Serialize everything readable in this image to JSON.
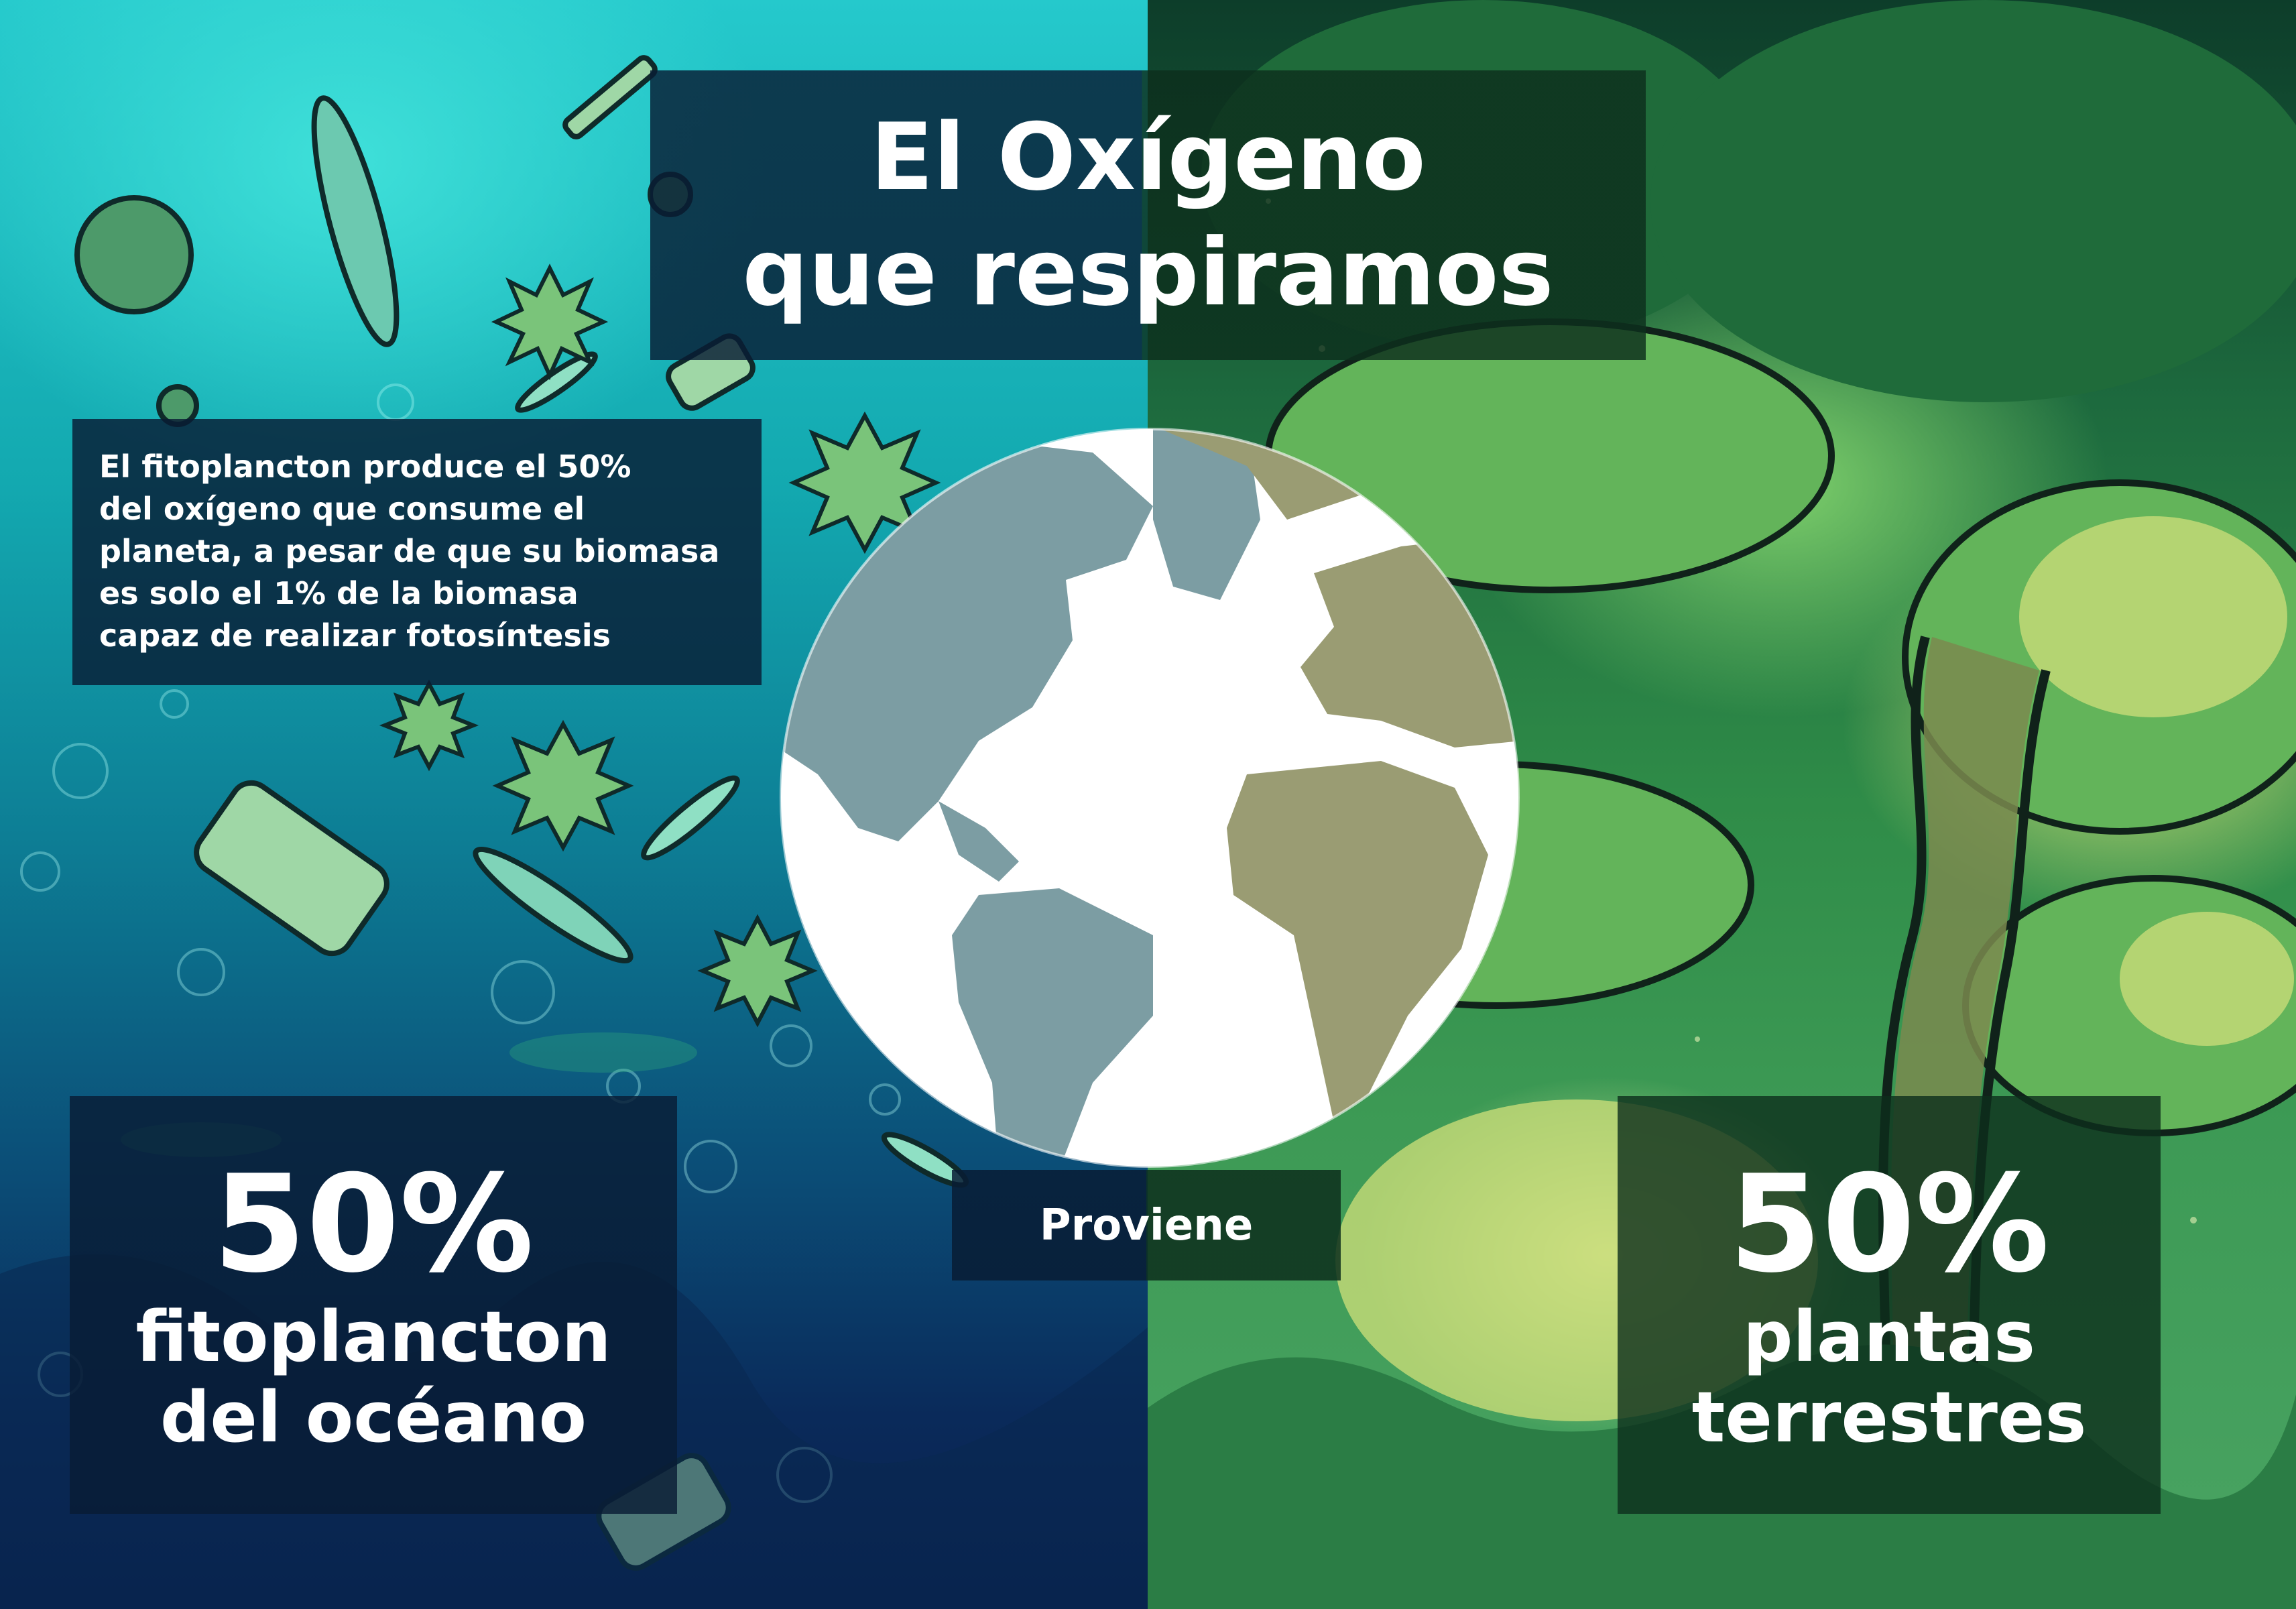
{
  "title": {
    "line1": "El Oxígeno",
    "line2": "que respiramos"
  },
  "info": {
    "lines": [
      "El fitoplancton produce el 50%",
      "del oxígeno que consume el",
      "planeta, a pesar de que su biomasa",
      "es solo el 1% de la biomasa",
      "capaz de realizar fotosíntesis"
    ]
  },
  "left_stat": {
    "value": "50%",
    "line1": "fitoplancton",
    "line2": "del océano"
  },
  "right_stat": {
    "value": "50%",
    "line1": "plantas",
    "line2": "terrestres"
  },
  "center_label": "Proviene",
  "colors": {
    "ocean_top": "#25c9cc",
    "ocean_bottom": "#08204c",
    "forest_top": "#0d3d2a",
    "forest_bottom": "#4aa463",
    "globe_land_left": "#7c9da3",
    "globe_land_right": "#9a9c73",
    "globe_ocean": "#ffffff",
    "panel_blue": "#081c34",
    "panel_green": "#0c2e1c"
  }
}
